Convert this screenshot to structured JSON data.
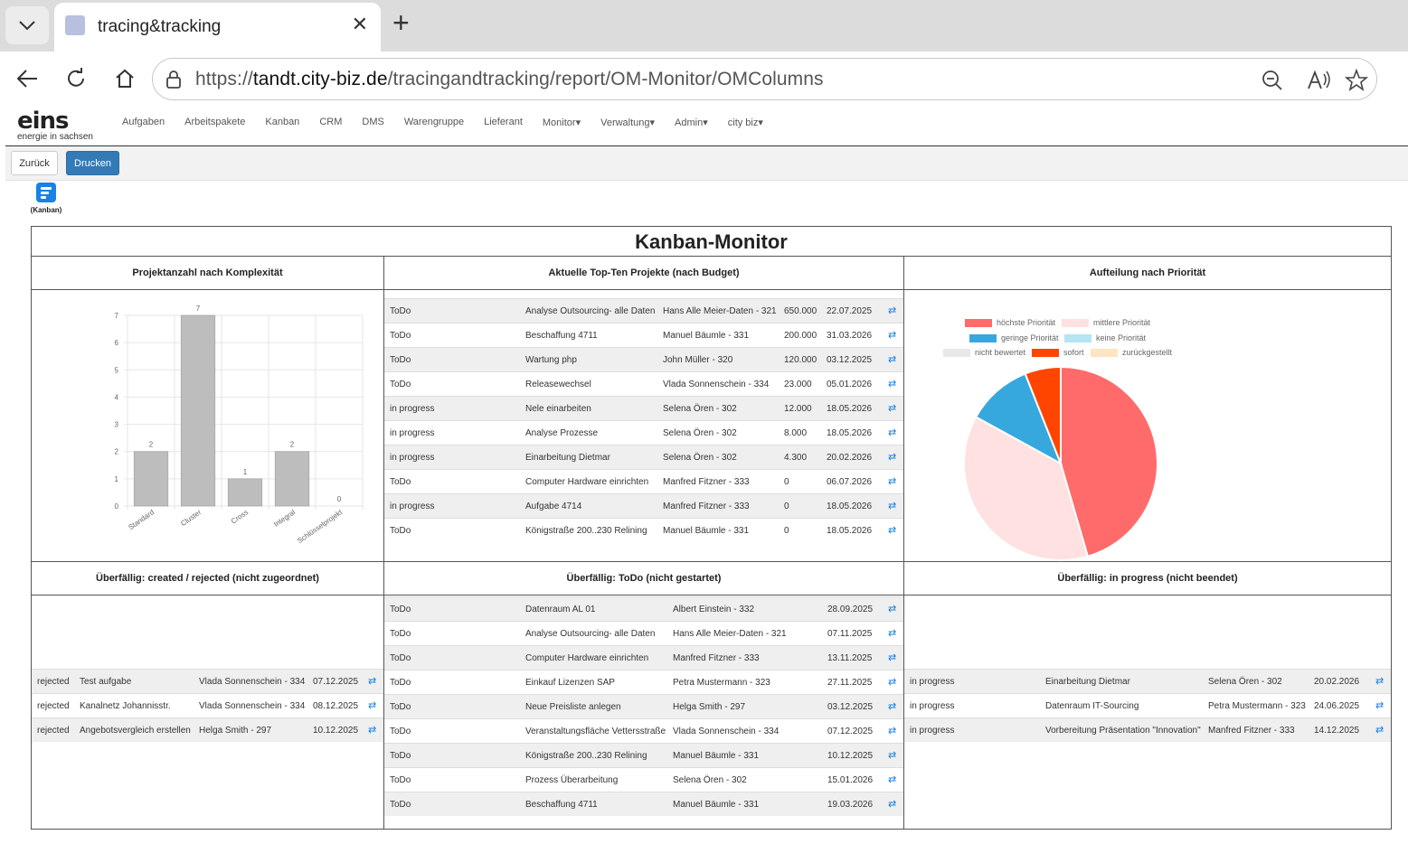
{
  "browser": {
    "tab_title": "tracing&tracking",
    "url_prefix": "https://",
    "url_host": "tandt.city-biz.de",
    "url_path": "/tracingandtracking/report/OM-Monitor/OMColumns"
  },
  "app": {
    "logo_text": "eins",
    "logo_subtitle": "energie in sachsen",
    "menu": [
      "Aufgaben",
      "Arbeitspakete",
      "Kanban",
      "CRM",
      "DMS",
      "Warengruppe",
      "Lieferant",
      "Monitor▾",
      "Verwaltung▾",
      "Admin▾",
      "city biz▾"
    ],
    "btn_back": "Zurück",
    "btn_print": "Drucken",
    "kanban_label": "(Kanban)"
  },
  "monitor": {
    "title": "Kanban-Monitor",
    "headers": {
      "complexity": "Projektanzahl nach Komplexität",
      "topten": "Aktuelle Top-Ten Projekte (nach Budget)",
      "priority": "Aufteilung nach Priorität",
      "overdue_created": "Überfällig: created / rejected (nicht zugeordnet)",
      "overdue_todo": "Überfällig: ToDo (nicht gestartet)",
      "overdue_progress": "Überfällig: in progress (nicht beendet)"
    },
    "topten": [
      [
        "ToDo",
        "Analyse Outsourcing- alle Daten",
        "Hans Alle Meier-Daten - 321",
        "650.000",
        "22.07.2025"
      ],
      [
        "ToDo",
        "Beschaffung 4711",
        "Manuel Bäumle - 331",
        "200.000",
        "31.03.2026"
      ],
      [
        "ToDo",
        "Wartung php",
        "John Müller - 320",
        "120.000",
        "03.12.2025"
      ],
      [
        "ToDo",
        "Releasewechsel",
        "Vlada Sonnenschein - 334",
        "23.000",
        "05.01.2026"
      ],
      [
        "in progress",
        "Nele einarbeiten",
        "Selena Ören - 302",
        "12.000",
        "18.05.2026"
      ],
      [
        "in progress",
        "Analyse Prozesse",
        "Selena Ören - 302",
        "8.000",
        "18.05.2026"
      ],
      [
        "in progress",
        "Einarbeitung Dietmar",
        "Selena Ören - 302",
        "4.300",
        "20.02.2026"
      ],
      [
        "ToDo",
        "Computer Hardware einrichten",
        "Manfred Fitzner - 333",
        "0",
        "06.07.2026"
      ],
      [
        "in progress",
        "Aufgabe 4714",
        "Manfred Fitzner - 333",
        "0",
        "18.05.2026"
      ],
      [
        "ToDo",
        "Königstraße 200..230 Relining",
        "Manuel Bäumle - 331",
        "0",
        "18.05.2026"
      ]
    ],
    "overdue_created": [
      [
        "rejected",
        "Test aufgabe",
        "Vlada Sonnenschein - 334",
        "07.12.2025"
      ],
      [
        "rejected",
        "Kanalnetz Johannisstr.",
        "Vlada Sonnenschein - 334",
        "08.12.2025"
      ],
      [
        "rejected",
        "Angebotsvergleich erstellen",
        "Helga Smith - 297",
        "10.12.2025"
      ]
    ],
    "overdue_todo": [
      [
        "ToDo",
        "Datenraum AL 01",
        "Albert Einstein - 332",
        "28.09.2025"
      ],
      [
        "ToDo",
        "Analyse Outsourcing- alle Daten",
        "Hans Alle Meier-Daten - 321",
        "07.11.2025"
      ],
      [
        "ToDo",
        "Computer Hardware einrichten",
        "Manfred Fitzner - 333",
        "13.11.2025"
      ],
      [
        "ToDo",
        "Einkauf Lizenzen SAP",
        "Petra Mustermann - 323",
        "27.11.2025"
      ],
      [
        "ToDo",
        "Neue Preisliste anlegen",
        "Helga Smith - 297",
        "03.12.2025"
      ],
      [
        "ToDo",
        "Veranstaltungsfläche Vettersstraße",
        "Vlada Sonnenschein - 334",
        "07.12.2025"
      ],
      [
        "ToDo",
        "Königstraße 200..230 Relining",
        "Manuel Bäumle - 331",
        "10.12.2025"
      ],
      [
        "ToDo",
        "Prozess Überarbeitung",
        "Selena Ören - 302",
        "15.01.2026"
      ],
      [
        "ToDo",
        "Beschaffung 4711",
        "Manuel Bäumle - 331",
        "19.03.2026"
      ]
    ],
    "overdue_progress": [
      [
        "in progress",
        "Einarbeitung Dietmar",
        "Selena Ören - 302",
        "20.02.2026"
      ],
      [
        "in progress",
        "Datenraum IT-Sourcing",
        "Petra Mustermann - 323",
        "24.06.2025"
      ],
      [
        "in progress",
        "Vorbereitung Präsentation \"Innovation\"",
        "Manfred Fitzner - 333",
        "14.12.2025"
      ]
    ]
  },
  "chart_data": [
    {
      "type": "bar",
      "categories": [
        "Standard",
        "Cluster",
        "Cross",
        "Integral",
        "Schlüsselprojekt"
      ],
      "values": [
        2,
        7,
        1,
        2,
        0
      ],
      "ylim": [
        0,
        7
      ],
      "yticks": [
        0,
        1,
        2,
        3,
        4,
        5,
        6,
        7
      ],
      "bar_color": "#bdbdbd"
    },
    {
      "type": "pie",
      "labels": [
        "höchste Priorität",
        "mittlere Priorität",
        "geringe Priorität",
        "keine Priorität",
        "nicht bewertet",
        "sofort",
        "zurückgestellt"
      ],
      "colors": [
        "#ff6b6b",
        "#ffe1e1",
        "#36a8de",
        "#b3e5f5",
        "#e8e8e8",
        "#ff4500",
        "#ffe4c4"
      ],
      "values": [
        45.5,
        37.5,
        11,
        0,
        0,
        6,
        0
      ]
    }
  ]
}
